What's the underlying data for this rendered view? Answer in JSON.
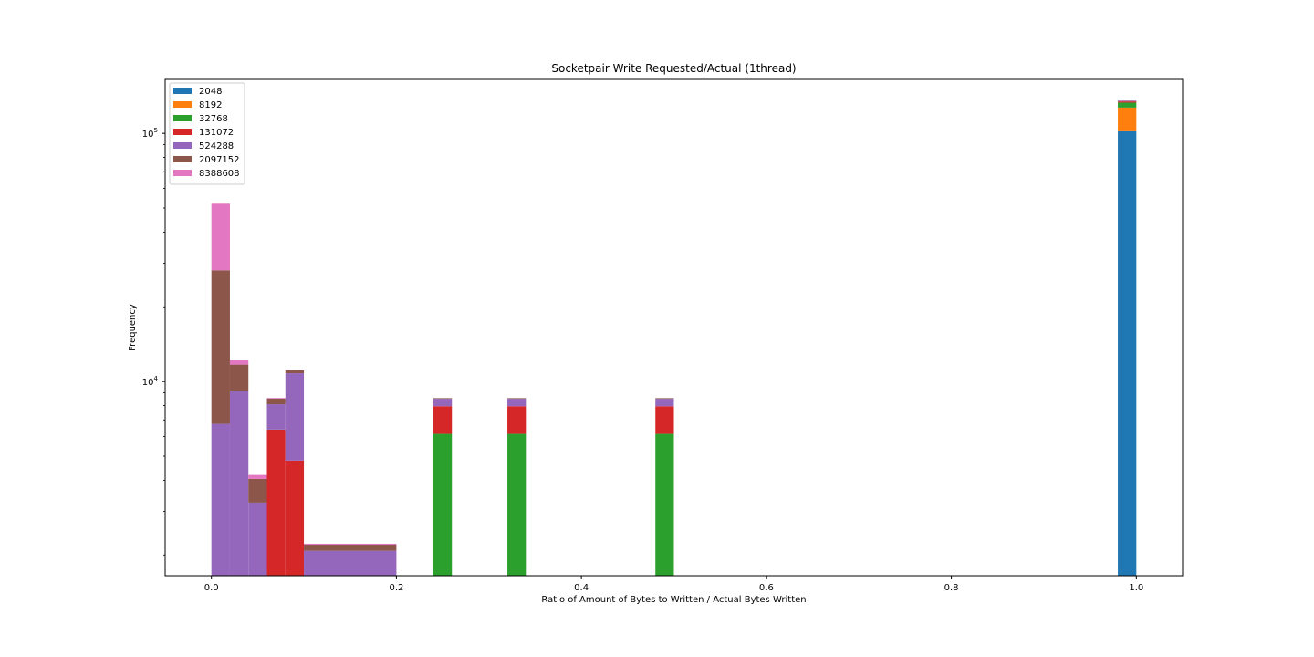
{
  "chart_data": {
    "type": "bar",
    "stacked": true,
    "title": "Socketpair Write Requested/Actual (1thread)",
    "xlabel": "Ratio of Amount of Bytes to Written / Actual Bytes Written",
    "ylabel": "Frequency",
    "yscale": "log",
    "xlim": [
      -0.05,
      1.05
    ],
    "ylim": [
      1650,
      165000
    ],
    "bin_width": 0.02,
    "x_ticks": [
      {
        "value": 0.0,
        "label": "0.0"
      },
      {
        "value": 0.2,
        "label": "0.2"
      },
      {
        "value": 0.4,
        "label": "0.4"
      },
      {
        "value": 0.6,
        "label": "0.6"
      },
      {
        "value": 0.8,
        "label": "0.8"
      },
      {
        "value": 1.0,
        "label": "1.0"
      }
    ],
    "y_major_ticks": [
      {
        "value": 10000,
        "base": "10",
        "exp": "4"
      },
      {
        "value": 100000,
        "base": "10",
        "exp": "5"
      }
    ],
    "y_minor_ticks": [
      2000,
      3000,
      4000,
      5000,
      6000,
      7000,
      8000,
      9000,
      20000,
      30000,
      40000,
      50000,
      60000,
      70000,
      80000,
      90000
    ],
    "grid": false,
    "legend_position": "top-left",
    "series": [
      {
        "name": "2048",
        "color": "#1f77b4",
        "bins": [
          [
            0.98,
            1.0,
            102000
          ]
        ]
      },
      {
        "name": "8192",
        "color": "#ff7f0e",
        "bins": [
          [
            0.98,
            1.0,
            25000
          ]
        ]
      },
      {
        "name": "32768",
        "color": "#2ca02c",
        "bins": [
          [
            0.24,
            0.26,
            6150
          ],
          [
            0.32,
            0.34,
            6150
          ],
          [
            0.48,
            0.5,
            6150
          ],
          [
            0.98,
            1.0,
            6000
          ]
        ]
      },
      {
        "name": "131072",
        "color": "#d62728",
        "bins": [
          [
            0.06,
            0.08,
            6400
          ],
          [
            0.08,
            0.1,
            4800
          ],
          [
            0.24,
            0.26,
            1800
          ],
          [
            0.32,
            0.34,
            1800
          ],
          [
            0.48,
            0.5,
            1800
          ],
          [
            0.98,
            1.0,
            1500
          ]
        ]
      },
      {
        "name": "524288",
        "color": "#9467bd",
        "bins": [
          [
            0.0,
            0.02,
            6750
          ],
          [
            0.02,
            0.04,
            9200
          ],
          [
            0.04,
            0.06,
            3250
          ],
          [
            0.06,
            0.08,
            1700
          ],
          [
            0.08,
            0.1,
            6000
          ],
          [
            0.1,
            0.2,
            2080
          ],
          [
            0.24,
            0.26,
            570
          ],
          [
            0.32,
            0.34,
            570
          ],
          [
            0.48,
            0.5,
            570
          ],
          [
            0.98,
            1.0,
            700
          ]
        ]
      },
      {
        "name": "2097152",
        "color": "#8c564b",
        "bins": [
          [
            0.0,
            0.02,
            21300
          ],
          [
            0.02,
            0.04,
            2500
          ],
          [
            0.04,
            0.06,
            800
          ],
          [
            0.06,
            0.08,
            440
          ],
          [
            0.08,
            0.1,
            290
          ],
          [
            0.1,
            0.2,
            120
          ],
          [
            0.24,
            0.26,
            50
          ],
          [
            0.32,
            0.34,
            50
          ],
          [
            0.48,
            0.5,
            50
          ],
          [
            0.98,
            1.0,
            300
          ]
        ]
      },
      {
        "name": "8388608",
        "color": "#e377c2",
        "bins": [
          [
            0.0,
            0.02,
            24000
          ],
          [
            0.02,
            0.04,
            500
          ],
          [
            0.04,
            0.06,
            150
          ],
          [
            0.06,
            0.08,
            50
          ],
          [
            0.08,
            0.1,
            30
          ],
          [
            0.1,
            0.2,
            20
          ],
          [
            0.98,
            1.0,
            100
          ]
        ]
      }
    ]
  }
}
